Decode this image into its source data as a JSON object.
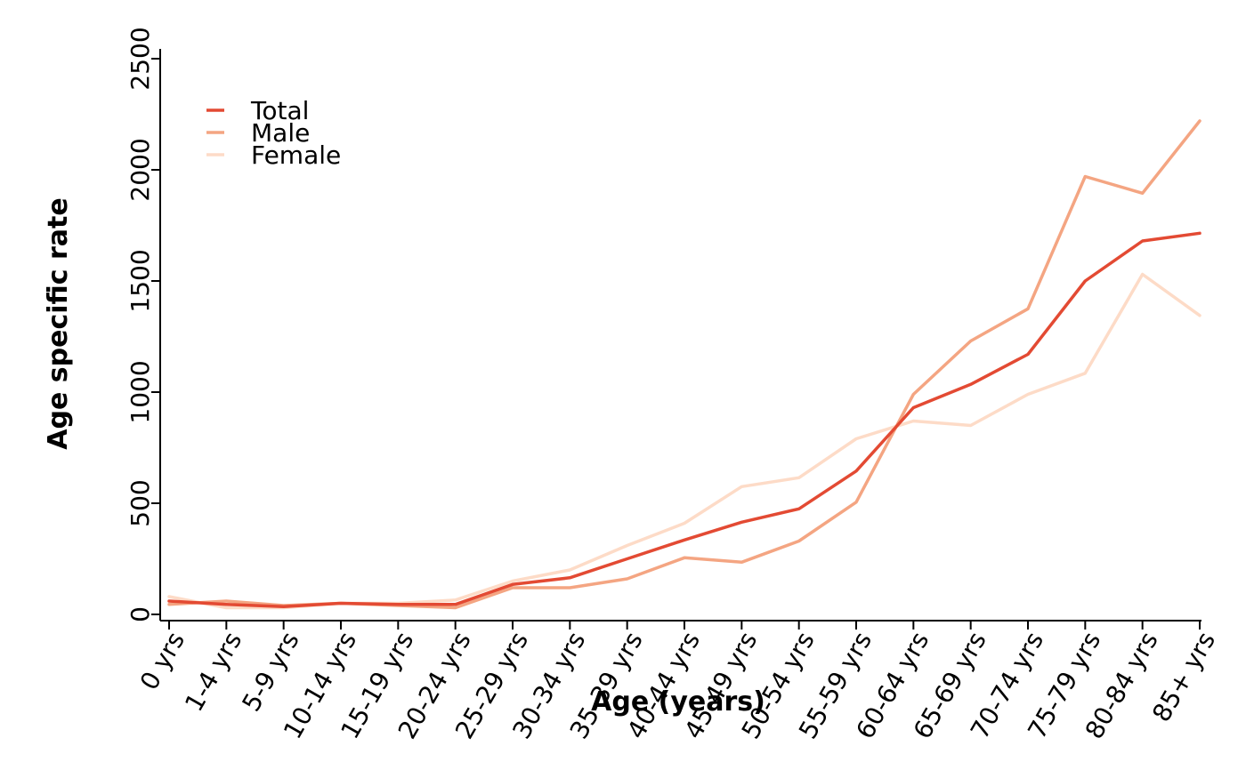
{
  "chart_data": {
    "type": "line",
    "title": "",
    "xlabel": "Age (years)",
    "ylabel": "Age specific rate",
    "categories": [
      "0 yrs",
      "1-4 yrs",
      "5-9 yrs",
      "10-14 yrs",
      "15-19 yrs",
      "20-24 yrs",
      "25-29 yrs",
      "30-34 yrs",
      "35-39 yrs",
      "40-44 yrs",
      "45-49 yrs",
      "50-54 yrs",
      "55-59 yrs",
      "60-64 yrs",
      "65-69 yrs",
      "70-74 yrs",
      "75-79 yrs",
      "80-84 yrs",
      "85+ yrs"
    ],
    "ylim": [
      0,
      2550
    ],
    "yticks": [
      0,
      500,
      1000,
      1500,
      2000,
      2500
    ],
    "ytick_labels": [
      "0",
      "500",
      "1000",
      "1500",
      "2000",
      "2500"
    ],
    "grid": false,
    "legend_position": "top-left",
    "series": [
      {
        "name": "Total",
        "color": "#E34A33",
        "values": [
          60,
          45,
          35,
          50,
          45,
          45,
          135,
          165,
          250,
          335,
          415,
          475,
          645,
          930,
          1035,
          1170,
          1500,
          1680,
          1715
        ]
      },
      {
        "name": "Male",
        "color": "#F4A582",
        "values": [
          45,
          60,
          40,
          50,
          40,
          30,
          120,
          120,
          160,
          255,
          235,
          330,
          505,
          990,
          1230,
          1375,
          1970,
          1895,
          2220
        ]
      },
      {
        "name": "Female",
        "color": "#FDDBC7",
        "values": [
          80,
          30,
          30,
          50,
          50,
          65,
          150,
          200,
          310,
          410,
          575,
          615,
          790,
          870,
          850,
          990,
          1085,
          1530,
          1345
        ]
      }
    ]
  }
}
